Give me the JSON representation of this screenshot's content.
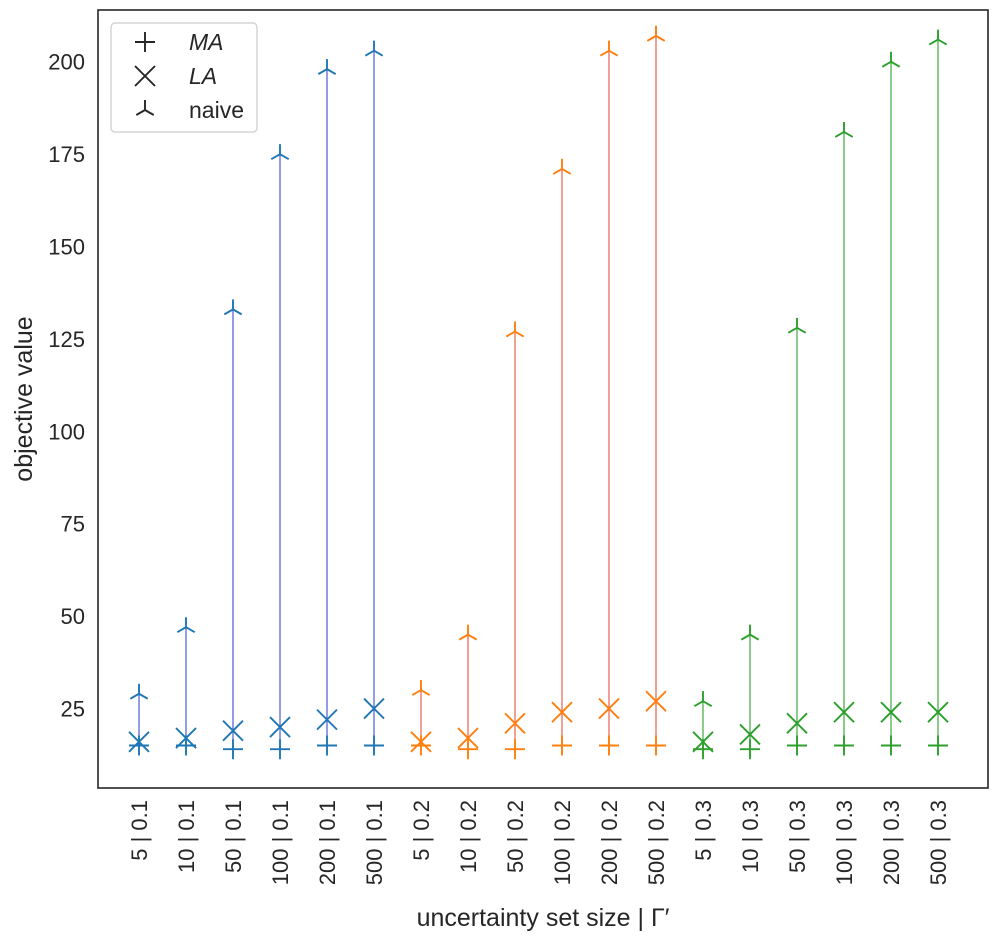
{
  "chart_data": {
    "type": "scatter",
    "title": "",
    "xlabel": "uncertainty set size | Γ′",
    "ylabel": "objective value",
    "ylim": [
      3.5,
      214
    ],
    "yticks": [
      25,
      50,
      75,
      100,
      125,
      150,
      175,
      200
    ],
    "grid": false,
    "legend": {
      "position": "top-left",
      "entries": [
        {
          "label": "MA",
          "marker": "plus",
          "italic": true
        },
        {
          "label": "LA",
          "marker": "x",
          "italic": true
        },
        {
          "label": "naive",
          "marker": "tri-down",
          "italic": false
        }
      ]
    },
    "categories": [
      "5 | 0.1",
      "10 | 0.1",
      "50 | 0.1",
      "100 | 0.1",
      "200 | 0.1",
      "500 | 0.1",
      "5 | 0.2",
      "10 | 0.2",
      "50 | 0.2",
      "100 | 0.2",
      "200 | 0.2",
      "500 | 0.2",
      "5 | 0.3",
      "10 | 0.3",
      "50 | 0.3",
      "100 | 0.3",
      "200 | 0.3",
      "500 | 0.3"
    ],
    "groups": [
      {
        "gamma": "0.1",
        "marker_color": "#1f77b4",
        "line_color": "#3b4cd6"
      },
      {
        "gamma": "0.2",
        "marker_color": "#ff7f0e",
        "line_color": "#e8533c"
      },
      {
        "gamma": "0.3",
        "marker_color": "#2ca02c",
        "line_color": "#2ca02c"
      }
    ],
    "series": [
      {
        "name": "MA",
        "marker": "plus",
        "values": [
          15,
          15,
          14,
          14,
          15,
          15,
          15,
          14,
          14,
          15,
          15,
          15,
          14,
          14,
          15,
          15,
          15,
          15
        ]
      },
      {
        "name": "LA",
        "marker": "x",
        "values": [
          16,
          17,
          19,
          20,
          22,
          25,
          16,
          17,
          21,
          24,
          25,
          27,
          16,
          18,
          21,
          24,
          24,
          24
        ]
      },
      {
        "name": "naive",
        "marker": "tri-down",
        "values": [
          29,
          47,
          133,
          175,
          198,
          203,
          30,
          45,
          127,
          171,
          203,
          207,
          27,
          45,
          128,
          181,
          200,
          206
        ]
      }
    ]
  }
}
